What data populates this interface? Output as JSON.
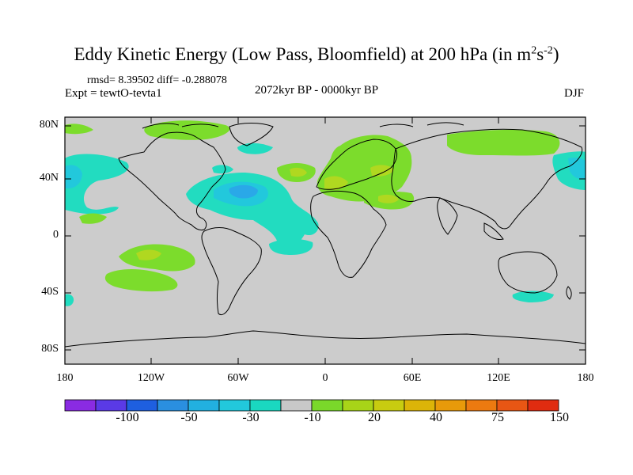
{
  "title": "Eddy Kinetic Energy (Low Pass, Bloomfield) at 200 hPa (in m",
  "title_sup1": "2",
  "title_mid": "s",
  "title_sup2": "-2",
  "title_end": ")",
  "stats": "rmsd= 8.39502 diff= -0.288078",
  "experiment": "Expt = tewtO-tevta1",
  "period": "2072kyr BP - 0000kyr BP",
  "season": "DJF",
  "lat_labels": [
    "80N",
    "40N",
    "0",
    "40S",
    "80S"
  ],
  "lon_labels": [
    "180",
    "120W",
    "60W",
    "0",
    "60E",
    "120E",
    "180"
  ],
  "colorbar": {
    "labels": [
      "-100",
      "-50",
      "-30",
      "-10",
      "20",
      "40",
      "75",
      "150"
    ],
    "colors": [
      "#8a2be2",
      "#5a3ae6",
      "#1e5fe0",
      "#2a8fe0",
      "#22b0e0",
      "#22c8dc",
      "#1ad8c0",
      "#c8c8c8",
      "#7ad82a",
      "#a8d418",
      "#c8cc10",
      "#dcb408",
      "#e89a0a",
      "#ec7a10",
      "#e85614",
      "#e02c10"
    ]
  },
  "map_colors": {
    "ocean_land": "#cccccc",
    "pos_light": "#7cdc2c",
    "pos_medium": "#b0d820",
    "neg_light": "#22dcc0",
    "neg_medium": "#22c8dc",
    "neg_strong": "#2aa8e8"
  }
}
